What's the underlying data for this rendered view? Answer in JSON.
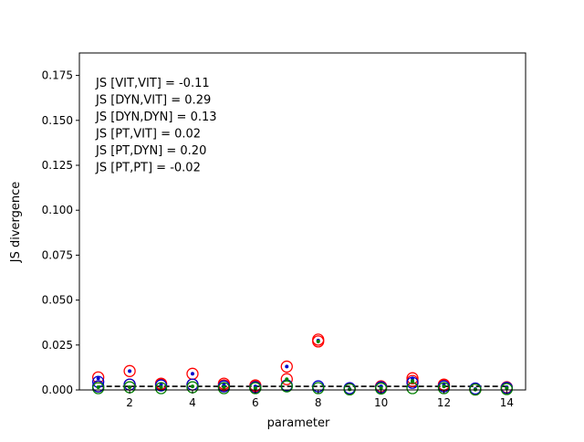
{
  "chart_data": {
    "type": "scatter",
    "xlabel": "parameter",
    "ylabel": "JS divergence",
    "xlim": [
      0.4,
      14.6
    ],
    "ylim": [
      0,
      0.1875
    ],
    "xticks": [
      2,
      4,
      6,
      8,
      10,
      12,
      14
    ],
    "yticks": [
      0.0,
      0.025,
      0.05,
      0.075,
      0.1,
      0.125,
      0.15,
      0.175
    ],
    "ytick_labels": [
      "0.000",
      "0.025",
      "0.050",
      "0.075",
      "0.100",
      "0.125",
      "0.150",
      "0.175"
    ],
    "grid": false,
    "annotations": [
      "JS [VIT,VIT] = -0.11",
      "JS [DYN,VIT] = 0.29",
      "JS [DYN,DYN] = 0.13",
      "JS [PT,VIT] = 0.02",
      "JS [PT,DYN] = 0.20",
      "JS [PT,PT] = -0.02"
    ],
    "reference_line": {
      "y": 0.002,
      "style": "dashed",
      "color": "#000000"
    },
    "series": [
      {
        "marker": "open-circle",
        "color": "#ff0000",
        "x": [
          1,
          1,
          2,
          2,
          3,
          3,
          4,
          4,
          5,
          5,
          6,
          6,
          7,
          7,
          8,
          8,
          9,
          9,
          10,
          10,
          11,
          11,
          12,
          12,
          13,
          13,
          14,
          14
        ],
        "y": [
          0.007,
          0.002,
          0.0105,
          0.003,
          0.0035,
          0.003,
          0.009,
          0.003,
          0.0035,
          0.0025,
          0.0025,
          0.002,
          0.013,
          0.006,
          0.028,
          0.027,
          0.0008,
          0.0005,
          0.002,
          0.0015,
          0.0065,
          0.005,
          0.003,
          0.0025,
          0.0005,
          0.0003,
          0.0015,
          0.001
        ]
      },
      {
        "marker": "open-circle",
        "color": "#0000cc",
        "x": [
          1,
          1,
          2,
          3,
          4,
          5,
          6,
          7,
          8,
          9,
          10,
          11,
          12,
          13,
          14
        ],
        "y": [
          0.0045,
          0.002,
          0.003,
          0.0025,
          0.003,
          0.002,
          0.0015,
          0.0025,
          0.002,
          0.001,
          0.0015,
          0.004,
          0.002,
          0.0008,
          0.0012
        ]
      },
      {
        "marker": "dot",
        "color": "#0000cc",
        "x": [
          1,
          2,
          3,
          4,
          5,
          6,
          7,
          8,
          9,
          10,
          11,
          12,
          13,
          14
        ],
        "y": [
          0.0065,
          0.0105,
          0.003,
          0.009,
          0.003,
          0.002,
          0.013,
          0.0275,
          0.0005,
          0.002,
          0.0065,
          0.003,
          0.0005,
          0.0015
        ]
      },
      {
        "marker": "open-circle",
        "color": "#008000",
        "x": [
          1,
          2,
          3,
          4,
          5,
          6,
          7,
          8,
          9,
          10,
          11,
          12,
          13,
          14
        ],
        "y": [
          0.001,
          0.0015,
          0.001,
          0.0015,
          0.001,
          0.001,
          0.002,
          0.001,
          0.0003,
          0.0008,
          0.001,
          0.001,
          0.0002,
          0.0005
        ]
      },
      {
        "marker": "dot",
        "color": "#008000",
        "x": [
          1,
          2,
          3,
          4,
          5,
          6,
          7,
          8,
          9,
          10,
          11,
          12,
          13,
          14
        ],
        "y": [
          0.0015,
          0.0015,
          0.0015,
          0.002,
          0.0015,
          0.001,
          0.006,
          0.027,
          0.0003,
          0.001,
          0.005,
          0.002,
          0.0002,
          0.001
        ]
      }
    ]
  }
}
